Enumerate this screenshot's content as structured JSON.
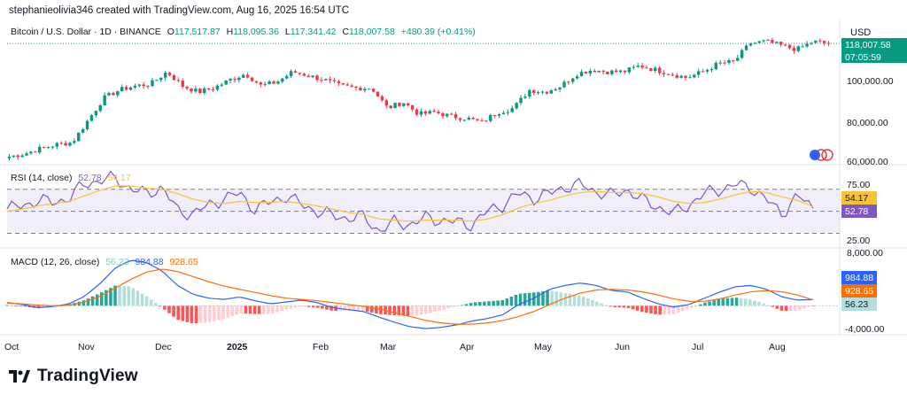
{
  "header": {
    "text": "stephanieolivia346 created with TradingView.com, Aug 16, 2025 16:54 UTC"
  },
  "price_legend": {
    "symbol": "Bitcoin / U.S. Dollar · 1D · BINANCE",
    "o_label": "O",
    "o": "117,517.87",
    "h_label": "H",
    "h": "118,095.36",
    "l_label": "L",
    "l": "117,341.42",
    "c_label": "C",
    "c": "118,007.58",
    "change": "+480.39 (+0.41%)"
  },
  "price_axis": {
    "currency": "USD",
    "ticks": [
      "100,000.00",
      "80,000.00",
      "60,000.00"
    ],
    "last_price": "118,007.58",
    "countdown": "07:05:59"
  },
  "rsi_legend": {
    "name": "RSI (14, close)",
    "rsi": "52.78",
    "ma": "54.17"
  },
  "rsi_axis": {
    "ticks": [
      "75.00",
      "25.00"
    ],
    "ma_label": "54.17",
    "rsi_label": "52.78"
  },
  "macd_legend": {
    "name": "MACD (12, 26, close)",
    "hist": "56.23",
    "macd": "984.88",
    "signal": "928.65"
  },
  "macd_axis": {
    "ticks": [
      "8,000.00",
      "-4,000.00"
    ],
    "macd_label": "984.88",
    "signal_label": "928.65",
    "hist_label": "56.23"
  },
  "time_axis": {
    "labels": [
      "Oct",
      "Nov",
      "Dec",
      "2025",
      "Feb",
      "Mar",
      "Apr",
      "May",
      "Jun",
      "Jul",
      "Aug"
    ]
  },
  "brand": {
    "name": "TradingView"
  },
  "colors": {
    "up": "#089981",
    "down": "#f23645",
    "rsi": "#7e57c2",
    "rsi_ma": "#f7c335",
    "macd": "#2962ff",
    "signal": "#ff6d00"
  },
  "chart_data": [
    {
      "type": "candlestick",
      "title": "Bitcoin / U.S. Dollar · 1D · BINANCE",
      "ylim": [
        58000,
        122000
      ],
      "x": [
        "Oct",
        "Nov",
        "Dec",
        "2025",
        "Feb",
        "Mar",
        "Apr",
        "May",
        "Jun",
        "Jul",
        "Aug"
      ],
      "close_path": [
        62000,
        63500,
        66000,
        68000,
        69000,
        80000,
        91000,
        95000,
        97000,
        98000,
        104000,
        97000,
        94000,
        96000,
        100000,
        103000,
        97000,
        99000,
        104000,
        102000,
        100000,
        97000,
        96000,
        96000,
        86000,
        89000,
        83000,
        84000,
        82000,
        81000,
        79000,
        84000,
        86000,
        95000,
        94000,
        97000,
        103000,
        105000,
        104000,
        104000,
        107000,
        105000,
        103000,
        101000,
        104000,
        108000,
        109000,
        118000,
        119000,
        117000,
        115000,
        119000,
        118000
      ],
      "last": 118007.58
    },
    {
      "type": "line",
      "title": "RSI (14, close)",
      "ylim": [
        20,
        85
      ],
      "levels": [
        70,
        50,
        30
      ],
      "series": [
        {
          "name": "RSI",
          "values": [
            52,
            55,
            60,
            58,
            62,
            75,
            78,
            80,
            70,
            66,
            72,
            50,
            48,
            55,
            62,
            66,
            52,
            58,
            64,
            56,
            50,
            46,
            44,
            45,
            32,
            40,
            38,
            44,
            42,
            40,
            38,
            50,
            56,
            66,
            62,
            66,
            72,
            74,
            68,
            64,
            70,
            60,
            54,
            48,
            56,
            66,
            70,
            74,
            72,
            60,
            48,
            64,
            53
          ]
        },
        {
          "name": "MA",
          "values": [
            50,
            52,
            55,
            57,
            59,
            64,
            69,
            73,
            73,
            71,
            70,
            66,
            61,
            58,
            57,
            59,
            58,
            58,
            59,
            57,
            55,
            52,
            49,
            47,
            43,
            42,
            41,
            42,
            42,
            42,
            41,
            43,
            47,
            53,
            57,
            60,
            64,
            67,
            68,
            67,
            67,
            66,
            63,
            59,
            57,
            58,
            61,
            65,
            68,
            67,
            63,
            60,
            54
          ]
        }
      ],
      "last_rsi": 52.78,
      "last_ma": 54.17
    },
    {
      "type": "line",
      "title": "MACD (12, 26, close)",
      "ylim": [
        -4000,
        8000
      ],
      "series": [
        {
          "name": "MACD",
          "values": [
            500,
            200,
            -300,
            -100,
            300,
            1500,
            3500,
            6000,
            7200,
            6800,
            5500,
            3200,
            1800,
            1200,
            1000,
            1400,
            800,
            300,
            600,
            900,
            500,
            -300,
            -600,
            -900,
            -1800,
            -2600,
            -3300,
            -3600,
            -3400,
            -3000,
            -2400,
            -2000,
            -1400,
            200,
            1200,
            2600,
            3200,
            3600,
            3200,
            2400,
            2200,
            1200,
            300,
            -200,
            200,
            1200,
            2200,
            3000,
            3200,
            2600,
            1400,
            900,
            984.88
          ]
        },
        {
          "name": "Signal",
          "values": [
            400,
            300,
            100,
            0,
            100,
            600,
            1500,
            2800,
            4200,
            5300,
            5800,
            5400,
            4600,
            3800,
            3100,
            2600,
            2100,
            1600,
            1200,
            1000,
            800,
            500,
            200,
            -100,
            -500,
            -1100,
            -1700,
            -2300,
            -2700,
            -2900,
            -2900,
            -2700,
            -2300,
            -1700,
            -900,
            200,
            1200,
            2000,
            2500,
            2600,
            2500,
            2200,
            1700,
            1100,
            700,
            700,
            1100,
            1700,
            2200,
            2400,
            2200,
            1700,
            928.65
          ]
        }
      ],
      "last_hist": 56.23
    }
  ]
}
